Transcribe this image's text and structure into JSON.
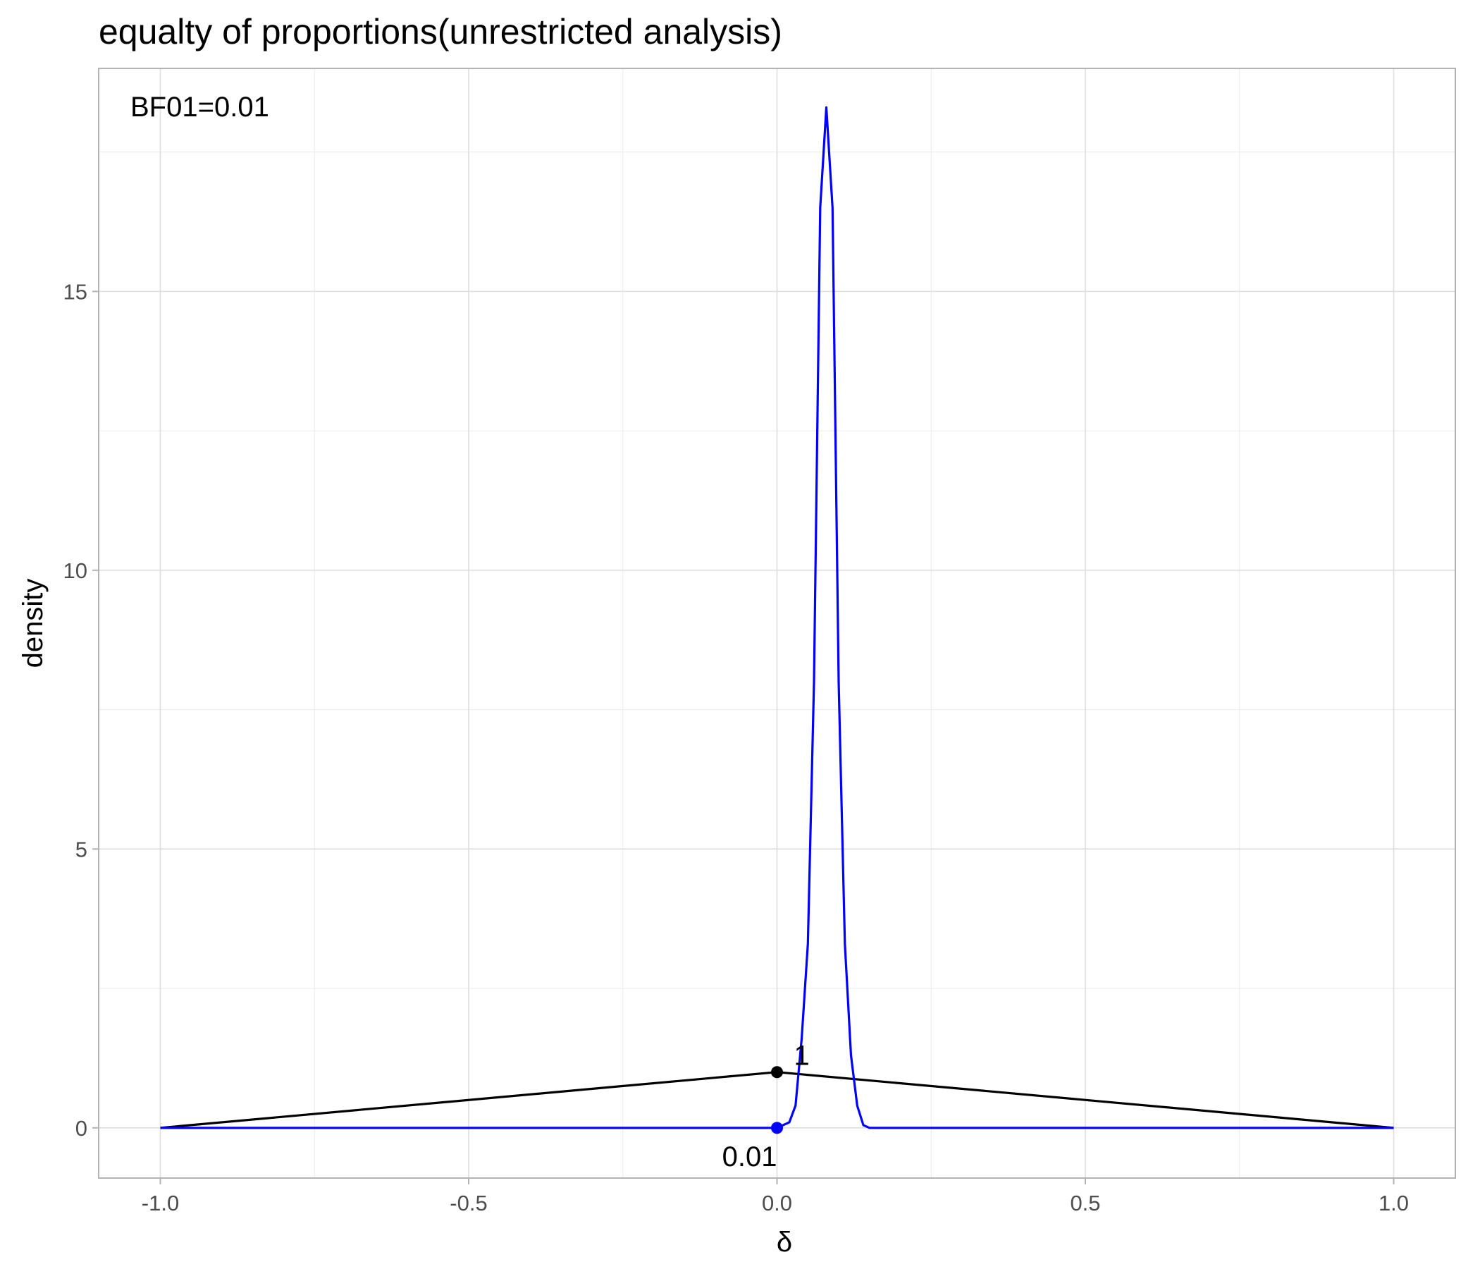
{
  "chart_data": {
    "type": "line",
    "title": "equalty of proportions(unrestricted analysis)",
    "xlabel": "δ",
    "ylabel": "density",
    "xlim": [
      -1.1,
      1.1
    ],
    "ylim": [
      -0.9,
      19.0
    ],
    "x_ticks": [
      -1.0,
      -0.5,
      0.0,
      0.5,
      1.0
    ],
    "x_tick_labels": [
      "-1.0",
      "-0.5",
      "0.0",
      "0.5",
      "1.0"
    ],
    "y_ticks": [
      0,
      5,
      10,
      15
    ],
    "y_tick_labels": [
      "0",
      "5",
      "10",
      "15"
    ],
    "grid": true,
    "annotation": "BF01=0.01",
    "series": [
      {
        "color": "#000000",
        "x": [
          -1.0,
          0.0,
          1.0
        ],
        "y": [
          0.0,
          1.0,
          0.0
        ]
      },
      {
        "color": "#0000ff",
        "x": [
          -1.0,
          -0.5,
          0.0,
          0.02,
          0.03,
          0.04,
          0.05,
          0.06,
          0.07,
          0.08,
          0.09,
          0.1,
          0.11,
          0.12,
          0.13,
          0.14,
          0.15,
          0.16,
          0.17,
          0.18,
          0.5,
          1.0
        ],
        "y": [
          0.0,
          0.0,
          0.0,
          0.1,
          0.4,
          1.6,
          3.3,
          8.0,
          16.5,
          18.3,
          16.5,
          8.0,
          3.3,
          1.3,
          0.4,
          0.05,
          0.0,
          0.0,
          0.0,
          0.0,
          0.0,
          0.0
        ]
      }
    ],
    "points": [
      {
        "x": 0.0,
        "y": 1.0,
        "color": "#000000",
        "label": "1"
      },
      {
        "x": 0.0,
        "y": 0.0,
        "color": "#0000ff",
        "label": "0.01"
      }
    ]
  }
}
